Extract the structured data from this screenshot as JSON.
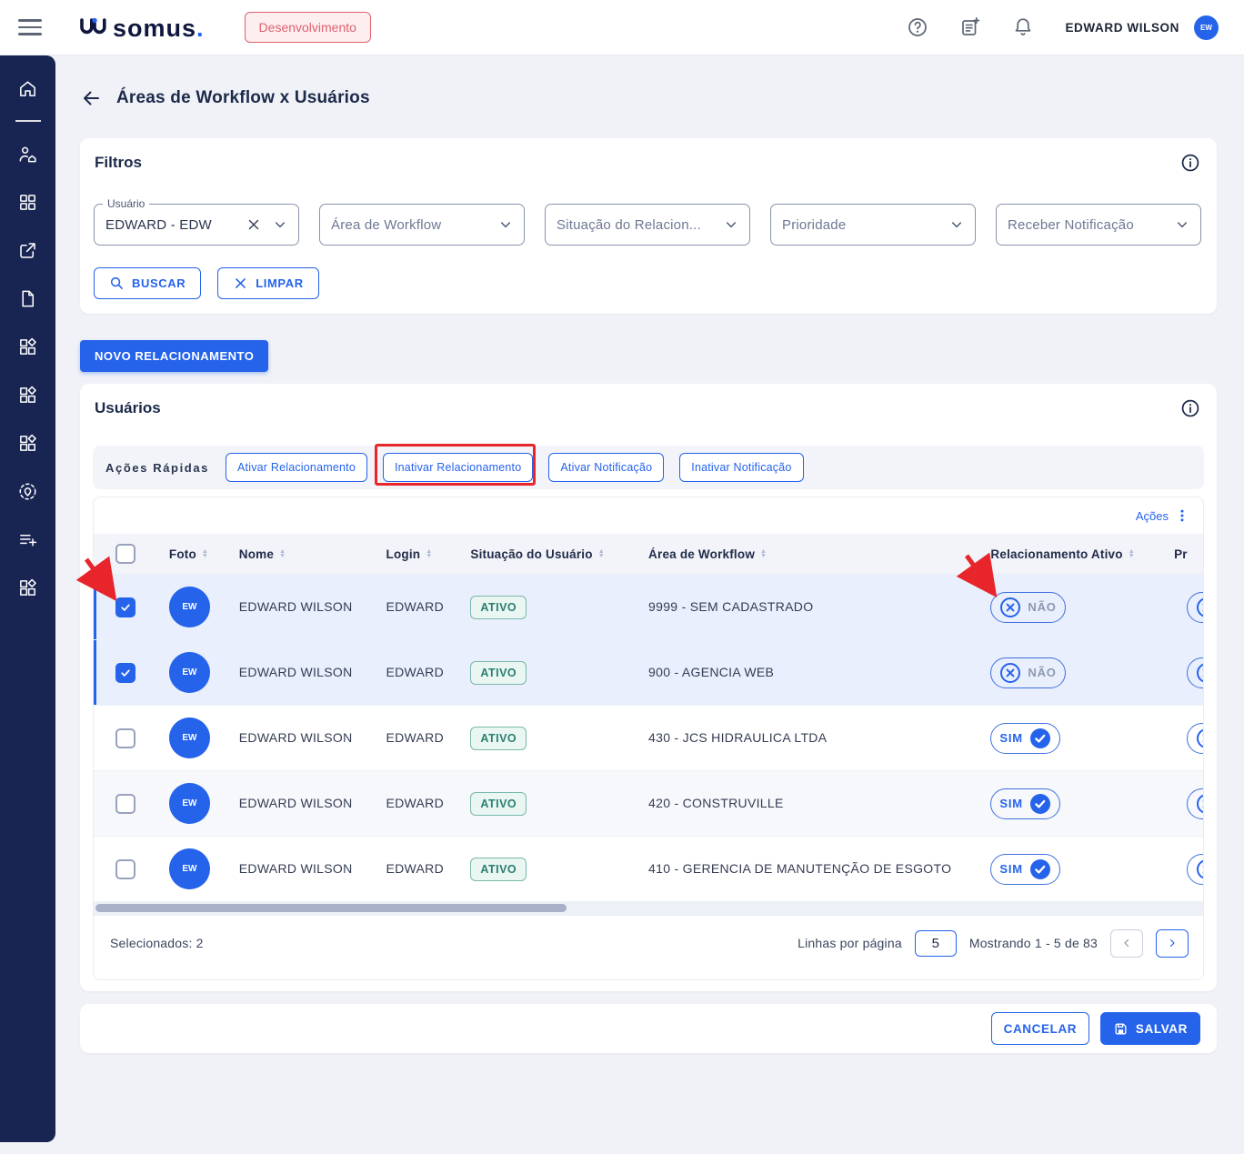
{
  "header": {
    "brand": "somus",
    "brand_dot": ".",
    "environment_badge": "Desenvolvimento",
    "user_name": "EDWARD WILSON",
    "user_initials": "EW"
  },
  "page": {
    "title": "Áreas de Workflow x Usuários"
  },
  "filters": {
    "title": "Filtros",
    "user_field": {
      "label": "Usuário",
      "value": "EDWARD - EDW"
    },
    "dropdowns": [
      "Área de Workflow",
      "Situação do Relacion...",
      "Prioridade",
      "Receber Notificação"
    ],
    "search_button": "BUSCAR",
    "clear_button": "LIMPAR"
  },
  "new_relationship_button": "NOVO RELACIONAMENTO",
  "users_card": {
    "title": "Usuários",
    "quick_actions_label": "Ações Rápidas",
    "quick_actions": [
      "Ativar Relacionamento",
      "Inativar Relacionamento",
      "Ativar Notificação",
      "Inativar Notificação"
    ],
    "actions_menu_label": "Ações",
    "table": {
      "columns": [
        "Foto",
        "Nome",
        "Login",
        "Situação do Usuário",
        "Área de Workflow",
        "Relacionamento Ativo",
        "Pr"
      ],
      "rows": [
        {
          "selected": true,
          "initials": "EW",
          "nome": "EDWARD WILSON",
          "login": "EDWARD",
          "situacao": "ATIVO",
          "area": "9999 - SEM CADASTRADO",
          "relacionamento_ativo": "NÃO"
        },
        {
          "selected": true,
          "initials": "EW",
          "nome": "EDWARD WILSON",
          "login": "EDWARD",
          "situacao": "ATIVO",
          "area": "900 - AGENCIA WEB",
          "relacionamento_ativo": "NÃO"
        },
        {
          "selected": false,
          "initials": "EW",
          "nome": "EDWARD WILSON",
          "login": "EDWARD",
          "situacao": "ATIVO",
          "area": "430 - JCS HIDRAULICA LTDA",
          "relacionamento_ativo": "SIM"
        },
        {
          "selected": false,
          "initials": "EW",
          "nome": "EDWARD WILSON",
          "login": "EDWARD",
          "situacao": "ATIVO",
          "area": "420 - CONSTRUVILLE",
          "relacionamento_ativo": "SIM"
        },
        {
          "selected": false,
          "initials": "EW",
          "nome": "EDWARD WILSON",
          "login": "EDWARD",
          "situacao": "ATIVO",
          "area": "410 - GERENCIA DE MANUTENÇÃO DE ESGOTO",
          "relacionamento_ativo": "SIM"
        }
      ]
    },
    "footer": {
      "selected_count_label": "Selecionados: 2",
      "rows_per_page_label": "Linhas por página",
      "rows_per_page_value": "5",
      "showing_label": "Mostrando 1 - 5 de 83"
    }
  },
  "action_bar": {
    "cancel_button": "CANCELAR",
    "save_button": "SALVAR"
  },
  "colors": {
    "primary": "#2563eb",
    "sidebar": "#182452",
    "annotation_red": "#e8252a",
    "active_badge_text": "#2a7f6f",
    "active_badge_bg": "#e9f6f2",
    "env_badge_text": "#e0626e",
    "env_badge_bg": "#fdeef0"
  }
}
